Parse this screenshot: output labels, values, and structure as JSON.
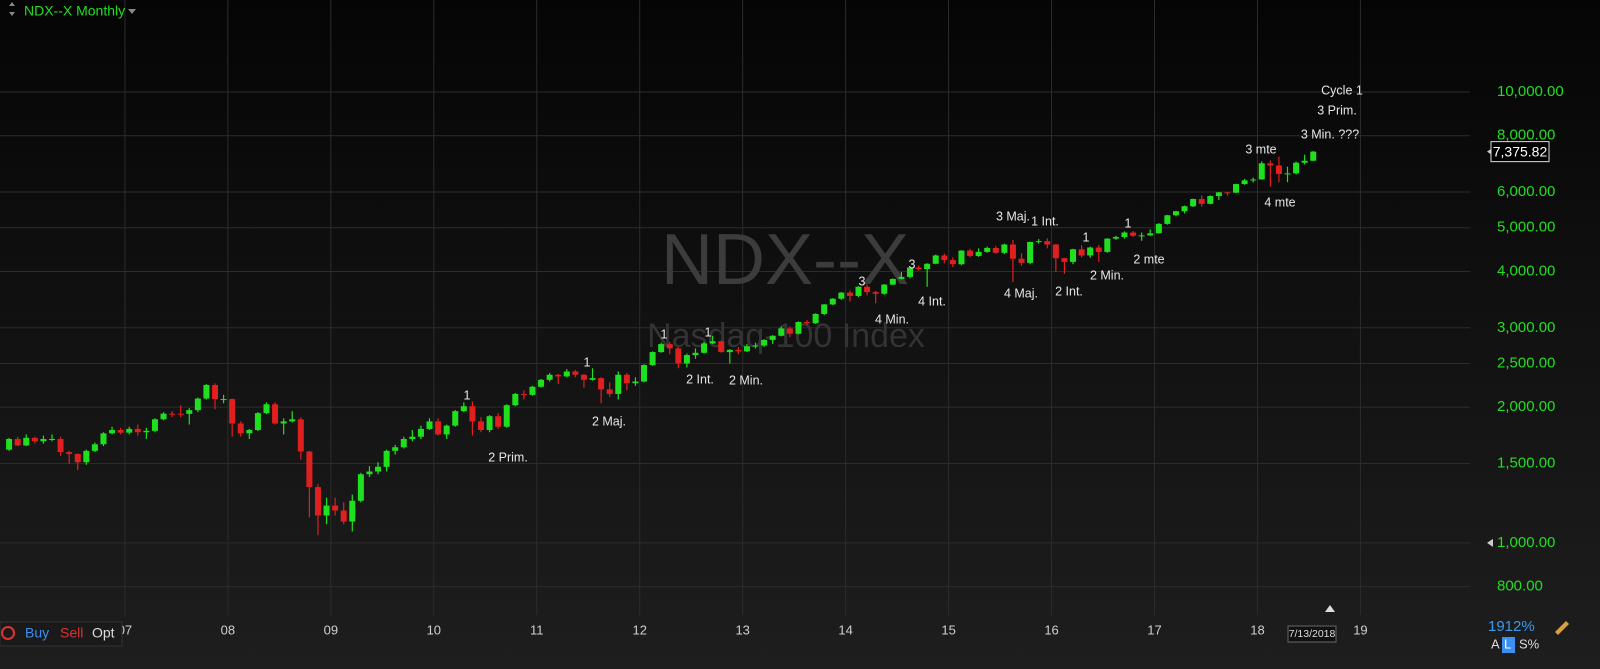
{
  "chart_data": {
    "type": "candlestick",
    "title": "NDX--X Monthly",
    "watermark": "NDX--X",
    "subtitle": "Nasdaq-100 Index",
    "log_scale": true,
    "grid": true,
    "up_color": "#1fe01f",
    "down_color": "#e01f1f",
    "ylim": [
      692,
      16000
    ],
    "yticks": [
      {
        "value": 10000,
        "label": "10,000.00"
      },
      {
        "value": 8000,
        "label": "8,000.00"
      },
      {
        "value": 6000,
        "label": "6,000.00"
      },
      {
        "value": 5000,
        "label": "5,000.00"
      },
      {
        "value": 4000,
        "label": "4,000.00"
      },
      {
        "value": 3000,
        "label": "3,000.00"
      },
      {
        "value": 2500,
        "label": "2,500.00"
      },
      {
        "value": 2000,
        "label": "2,000.00"
      },
      {
        "value": 1500,
        "label": "1,500.00"
      },
      {
        "value": 1000,
        "label": "1,000.00"
      },
      {
        "value": 800,
        "label": "800.00"
      }
    ],
    "xlim": [
      -1.06,
      170.27
    ],
    "xticks": [
      {
        "value": 13.5,
        "label": "07"
      },
      {
        "value": 25.5,
        "label": "08"
      },
      {
        "value": 37.5,
        "label": "09"
      },
      {
        "value": 49.5,
        "label": "10"
      },
      {
        "value": 61.5,
        "label": "11"
      },
      {
        "value": 73.5,
        "label": "12"
      },
      {
        "value": 85.5,
        "label": "13"
      },
      {
        "value": 97.5,
        "label": "14"
      },
      {
        "value": 109.5,
        "label": "15"
      },
      {
        "value": 121.5,
        "label": "16"
      },
      {
        "value": 133.5,
        "label": "17"
      },
      {
        "value": 145.5,
        "label": "18"
      },
      {
        "value": 157.5,
        "label": "19"
      }
    ],
    "categories": [
      null,
      null,
      null,
      null,
      null,
      null,
      null,
      null,
      null,
      null,
      null,
      null,
      null,
      null,
      null,
      null,
      null,
      null,
      null,
      null,
      null,
      null,
      null,
      null,
      null,
      null,
      null,
      null,
      null,
      null,
      null,
      null,
      null,
      null,
      null,
      null,
      null,
      null,
      null,
      null,
      null,
      null,
      null,
      null,
      null,
      null,
      null,
      null,
      null,
      null,
      null,
      null,
      null,
      null,
      null,
      null,
      null,
      null,
      null,
      null,
      null,
      null,
      null,
      null,
      null,
      null,
      null,
      null,
      null,
      null,
      null,
      null,
      null,
      null,
      null,
      null,
      null,
      null,
      null,
      null,
      null,
      null,
      null,
      null,
      null,
      null,
      null,
      null,
      null,
      null,
      null,
      null,
      null,
      null,
      null,
      null,
      null,
      null,
      null,
      null,
      null,
      null,
      null,
      null,
      null,
      null,
      null,
      null,
      null,
      null,
      null,
      null,
      null,
      null,
      null,
      null,
      null,
      null,
      null,
      null,
      null,
      null,
      null,
      null,
      null,
      null,
      null,
      null,
      null,
      null,
      null,
      null,
      null,
      null,
      null,
      null,
      null,
      null,
      null,
      null,
      null,
      null,
      null,
      null,
      null,
      null,
      null,
      null,
      null,
      null,
      null,
      null,
      null
    ],
    "open": [
      1610,
      1700,
      1645,
      1710,
      1680,
      1700,
      1700,
      1590,
      1575,
      1510,
      1600,
      1655,
      1750,
      1780,
      1756,
      1790,
      1760,
      1772,
      1880,
      1935,
      1934,
      1933,
      1970,
      2090,
      2240,
      2085,
      2085,
      1840,
      1750,
      1780,
      1940,
      2030,
      1840,
      1860,
      1880,
      1595,
      1330,
      1150,
      1210,
      1180,
      1115,
      1240,
      1420,
      1440,
      1475,
      1600,
      1630,
      1700,
      1720,
      1790,
      1860,
      1740,
      1820,
      1960,
      2010,
      1860,
      1780,
      1910,
      1810,
      2020,
      2140,
      2130,
      2220,
      2300,
      2360,
      2340,
      2400,
      2360,
      2300,
      2320,
      2190,
      2140,
      2360,
      2260,
      2280,
      2480,
      2650,
      2760,
      2700,
      2500,
      2610,
      2640,
      2770,
      2800,
      2650,
      2680,
      2660,
      2730,
      2740,
      2820,
      2880,
      2990,
      2910,
      3090,
      3070,
      3220,
      3380,
      3480,
      3590,
      3530,
      3700,
      3600,
      3570,
      3740,
      3850,
      3890,
      4080,
      4050,
      4160,
      4340,
      4240,
      4150,
      4450,
      4330,
      4420,
      4510,
      4400,
      4590,
      4270,
      4180,
      4650,
      4670,
      4590,
      4280,
      4200,
      4480,
      4340,
      4520,
      4420,
      4730,
      4770,
      4880,
      4800,
      4810,
      4860,
      5100,
      5330,
      5440,
      5580,
      5790,
      5650,
      5880,
      5990,
      5980,
      6250,
      6370,
      6400,
      6950,
      6870,
      6580,
      6600,
      6970,
      7040
    ],
    "high": [
      1710,
      1720,
      1740,
      1720,
      1730,
      1740,
      1720,
      1600,
      1580,
      1610,
      1670,
      1760,
      1810,
      1800,
      1810,
      1830,
      1800,
      1890,
      1950,
      1960,
      2020,
      1990,
      2100,
      2250,
      2260,
      2130,
      2090,
      1860,
      1790,
      1950,
      2050,
      2050,
      1890,
      1960,
      1900,
      1600,
      1350,
      1260,
      1260,
      1230,
      1280,
      1430,
      1480,
      1510,
      1610,
      1650,
      1720,
      1780,
      1820,
      1890,
      1890,
      1830,
      1970,
      2050,
      2060,
      1900,
      1920,
      1940,
      2030,
      2150,
      2180,
      2230,
      2310,
      2380,
      2370,
      2430,
      2420,
      2370,
      2440,
      2330,
      2270,
      2400,
      2380,
      2330,
      2490,
      2660,
      2780,
      2790,
      2720,
      2630,
      2700,
      2790,
      2880,
      2810,
      2690,
      2720,
      2760,
      2780,
      2830,
      2890,
      3020,
      3020,
      3100,
      3120,
      3230,
      3390,
      3490,
      3600,
      3630,
      3710,
      3740,
      3620,
      3750,
      3860,
      3990,
      4090,
      4120,
      4170,
      4360,
      4380,
      4300,
      4460,
      4490,
      4500,
      4540,
      4560,
      4610,
      4700,
      4390,
      4660,
      4720,
      4740,
      4600,
      4290,
      4490,
      4570,
      4540,
      4580,
      4740,
      4800,
      4910,
      4920,
      4880,
      4960,
      5120,
      5340,
      5450,
      5600,
      5800,
      5900,
      5900,
      6000,
      6010,
      6260,
      6420,
      6460,
      7020,
      7050,
      7190,
      6830,
      7010,
      7260,
      7400
    ],
    "low": [
      1600,
      1640,
      1640,
      1660,
      1660,
      1680,
      1560,
      1500,
      1450,
      1490,
      1590,
      1640,
      1740,
      1740,
      1740,
      1730,
      1700,
      1760,
      1870,
      1900,
      1900,
      1830,
      1950,
      2080,
      1980,
      2040,
      1720,
      1720,
      1700,
      1770,
      1930,
      1830,
      1740,
      1850,
      1530,
      1140,
      1040,
      1100,
      1150,
      1100,
      1060,
      1230,
      1400,
      1420,
      1440,
      1570,
      1620,
      1680,
      1700,
      1780,
      1730,
      1700,
      1810,
      1950,
      1730,
      1760,
      1760,
      1790,
      1800,
      2010,
      2080,
      2120,
      2210,
      2280,
      2250,
      2330,
      2330,
      2210,
      2290,
      2040,
      2110,
      2080,
      2180,
      2230,
      2270,
      2470,
      2640,
      2620,
      2440,
      2450,
      2560,
      2630,
      2760,
      2640,
      2500,
      2620,
      2650,
      2700,
      2720,
      2760,
      2870,
      2860,
      2900,
      3040,
      3060,
      3200,
      3370,
      3460,
      3430,
      3510,
      3540,
      3400,
      3550,
      3730,
      3840,
      3860,
      4020,
      3700,
      4150,
      4170,
      4090,
      4130,
      4300,
      4310,
      4400,
      4380,
      4370,
      3790,
      4120,
      4150,
      4610,
      4500,
      3990,
      3950,
      4150,
      4300,
      4290,
      4200,
      4400,
      4700,
      4730,
      4770,
      4680,
      4790,
      4850,
      5080,
      5300,
      5380,
      5560,
      5570,
      5640,
      5760,
      5890,
      5970,
      6230,
      6300,
      6390,
      6170,
      6310,
      6310,
      6560,
      6910,
      7040
    ],
    "close": [
      1700,
      1645,
      1710,
      1680,
      1700,
      1700,
      1590,
      1575,
      1510,
      1600,
      1655,
      1750,
      1780,
      1756,
      1790,
      1760,
      1772,
      1880,
      1935,
      1934,
      1933,
      1970,
      2090,
      2240,
      2085,
      2085,
      1840,
      1750,
      1780,
      1940,
      2030,
      1840,
      1860,
      1880,
      1595,
      1330,
      1150,
      1210,
      1180,
      1115,
      1240,
      1420,
      1440,
      1475,
      1600,
      1630,
      1700,
      1720,
      1790,
      1860,
      1740,
      1820,
      1960,
      2010,
      1860,
      1780,
      1910,
      1810,
      2020,
      2140,
      2130,
      2220,
      2300,
      2360,
      2340,
      2400,
      2360,
      2300,
      2320,
      2190,
      2140,
      2360,
      2260,
      2280,
      2480,
      2650,
      2760,
      2700,
      2500,
      2610,
      2640,
      2770,
      2800,
      2650,
      2680,
      2660,
      2730,
      2740,
      2820,
      2880,
      2990,
      2910,
      3090,
      3070,
      3220,
      3380,
      3480,
      3590,
      3530,
      3700,
      3600,
      3570,
      3740,
      3850,
      3890,
      4080,
      4050,
      4160,
      4340,
      4240,
      4150,
      4450,
      4330,
      4420,
      4510,
      4400,
      4590,
      4270,
      4180,
      4650,
      4670,
      4590,
      4280,
      4200,
      4480,
      4340,
      4520,
      4420,
      4730,
      4770,
      4880,
      4800,
      4810,
      4860,
      5100,
      5330,
      5440,
      5580,
      5790,
      5650,
      5880,
      5990,
      5980,
      6250,
      6370,
      6400,
      6950,
      6870,
      6580,
      6600,
      6970,
      7040,
      7375.82
    ],
    "last_price": {
      "value": 7375.82,
      "label": "7,375.82"
    },
    "date_label": "7/13/2018",
    "annotations": [
      "Cycle 1",
      "3 Prim.",
      "3 Min. ???",
      "3 mte",
      "4 mte",
      "3 Maj.",
      "1 Int.",
      "1",
      "1",
      "2 mte",
      "2 Min.",
      "2 Int.",
      "4 Maj.",
      "3",
      "4 Int.",
      "3",
      "4 Min.",
      "1",
      "1",
      "2 Int.",
      "2 Min.",
      "1",
      "2 Maj.",
      "1",
      "2 Prim."
    ]
  },
  "ui": {
    "buy": "Buy",
    "sell": "Sell",
    "opt": "Opt",
    "zoom": "1912%",
    "a": "A",
    "l": "L",
    "s_pct": "S%"
  }
}
